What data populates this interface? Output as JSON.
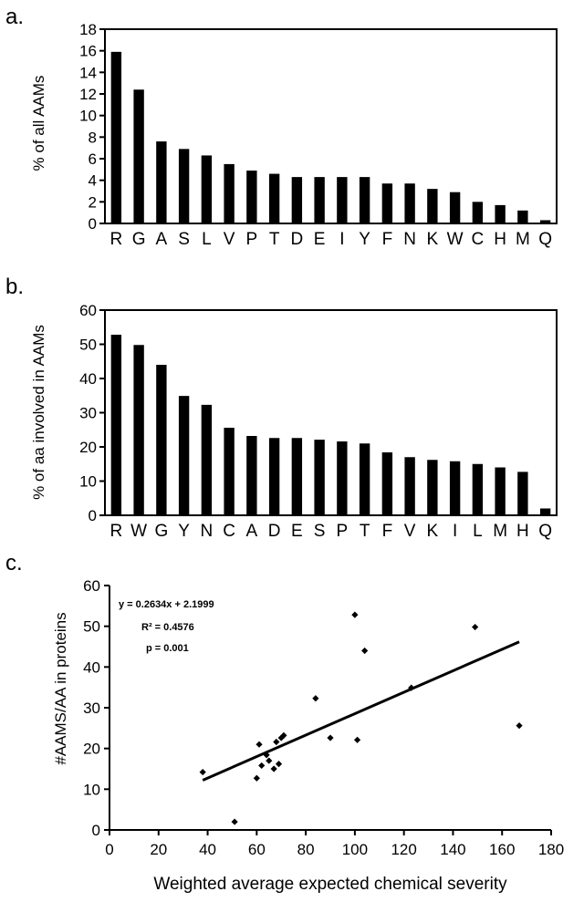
{
  "chart_data": [
    {
      "type": "bar",
      "panel_label": "a.",
      "ylabel": "% of all AAMs",
      "ylim": [
        0,
        18
      ],
      "yticks": [
        0,
        2,
        4,
        6,
        8,
        10,
        12,
        14,
        16,
        18
      ],
      "categories": [
        "R",
        "G",
        "A",
        "S",
        "L",
        "V",
        "P",
        "T",
        "D",
        "E",
        "I",
        "Y",
        "F",
        "N",
        "K",
        "W",
        "C",
        "H",
        "M",
        "Q"
      ],
      "values": [
        15.9,
        12.4,
        7.6,
        6.9,
        6.3,
        5.5,
        4.9,
        4.6,
        4.3,
        4.3,
        4.3,
        4.3,
        3.7,
        3.7,
        3.2,
        2.9,
        2.0,
        1.7,
        1.2,
        0.3
      ],
      "grid": false
    },
    {
      "type": "bar",
      "panel_label": "b.",
      "ylabel": "% of aa involved in AAMs",
      "ylim": [
        0,
        60
      ],
      "yticks": [
        0,
        10,
        20,
        30,
        40,
        50,
        60
      ],
      "categories": [
        "R",
        "W",
        "G",
        "Y",
        "N",
        "C",
        "A",
        "D",
        "E",
        "S",
        "P",
        "T",
        "F",
        "V",
        "K",
        "I",
        "L",
        "M",
        "H",
        "Q"
      ],
      "values": [
        52.8,
        49.8,
        44.0,
        34.9,
        32.3,
        25.6,
        23.2,
        22.6,
        22.6,
        22.1,
        21.6,
        21.0,
        18.4,
        17.0,
        16.2,
        15.8,
        15.0,
        14.0,
        12.7,
        2.0
      ],
      "grid": false
    },
    {
      "type": "scatter",
      "panel_label": "c.",
      "xlabel": "Weighted average expected chemical severity",
      "ylabel": "#AAMS/AA in proteins",
      "xlim": [
        0,
        180
      ],
      "ylim": [
        0,
        60
      ],
      "xticks": [
        0,
        20,
        40,
        60,
        80,
        100,
        120,
        140,
        160,
        180
      ],
      "yticks": [
        0,
        10,
        20,
        30,
        40,
        50,
        60
      ],
      "points": [
        [
          38,
          14.2
        ],
        [
          51,
          2.0
        ],
        [
          60,
          12.7
        ],
        [
          61,
          21.0
        ],
        [
          62,
          15.8
        ],
        [
          64,
          18.4
        ],
        [
          65,
          17.0
        ],
        [
          67,
          15.0
        ],
        [
          68,
          21.6
        ],
        [
          69,
          16.2
        ],
        [
          70,
          22.6
        ],
        [
          71,
          23.2
        ],
        [
          84,
          32.3
        ],
        [
          90,
          22.6
        ],
        [
          100,
          52.8
        ],
        [
          101,
          22.1
        ],
        [
          104,
          44.0
        ],
        [
          123,
          34.9
        ],
        [
          149,
          49.8
        ],
        [
          167,
          25.6
        ]
      ],
      "trendline": {
        "slope": 0.2634,
        "intercept": 2.1999,
        "x_range": [
          38,
          167
        ]
      },
      "annotation": [
        "y = 0.2634x + 2.1999",
        "R² = 0.4576",
        "p = 0.001"
      ],
      "grid": false
    }
  ]
}
